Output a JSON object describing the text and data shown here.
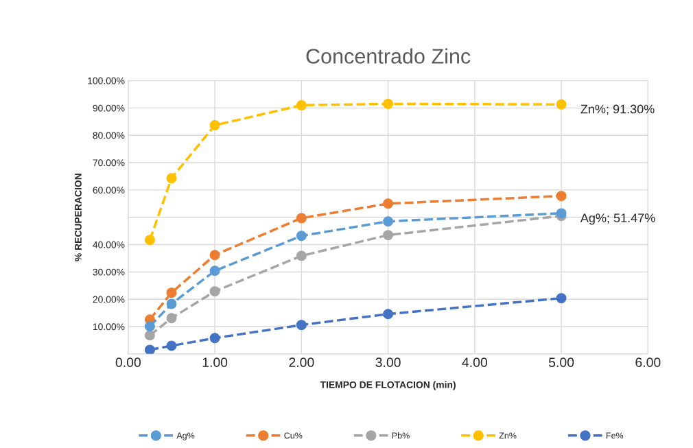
{
  "chart_data": {
    "type": "line",
    "title": "Concentrado Zinc",
    "xlabel": "TIEMPO DE FLOTACION (min)",
    "ylabel": "% RECUPERACION",
    "x": [
      0.25,
      0.5,
      1,
      2,
      3,
      5
    ],
    "series": [
      {
        "name": "Ag%",
        "color": "#5b9bd5",
        "values": [
          10.1,
          18.3,
          30.4,
          43.2,
          48.5,
          51.47
        ]
      },
      {
        "name": "Cu%",
        "color": "#ed7d31",
        "values": [
          12.6,
          22.4,
          36.2,
          49.7,
          55.0,
          57.8
        ]
      },
      {
        "name": "Pb%",
        "color": "#a5a5a5",
        "values": [
          6.8,
          13.1,
          22.9,
          35.9,
          43.5,
          50.5
        ]
      },
      {
        "name": "Zn%",
        "color": "#ffc000",
        "values": [
          41.7,
          64.3,
          83.7,
          91.0,
          91.5,
          91.3
        ]
      },
      {
        "name": "Fe%",
        "color": "#4472c4",
        "values": [
          1.5,
          3.0,
          5.8,
          10.6,
          14.6,
          20.4
        ]
      }
    ],
    "xlim": [
      0,
      6
    ],
    "xticks": [
      {
        "value": 0,
        "label": "0.00"
      },
      {
        "value": 1,
        "label": "1.00"
      },
      {
        "value": 2,
        "label": "2.00"
      },
      {
        "value": 3,
        "label": "3.00"
      },
      {
        "value": 4,
        "label": "4.00"
      },
      {
        "value": 5,
        "label": "5.00"
      },
      {
        "value": 6,
        "label": "6.00"
      }
    ],
    "ylim": [
      0,
      100
    ],
    "yticks": [
      {
        "value": 0,
        "label": null
      },
      {
        "value": 10,
        "label": "10.00%"
      },
      {
        "value": 20,
        "label": "20.00%"
      },
      {
        "value": 30,
        "label": "30.00%"
      },
      {
        "value": 40,
        "label": "40.00%"
      },
      {
        "value": 50,
        "label": null
      },
      {
        "value": 60,
        "label": "60.00%"
      },
      {
        "value": 70,
        "label": "70.00%"
      },
      {
        "value": 80,
        "label": "80.00%"
      },
      {
        "value": 90,
        "label": "90.00%"
      },
      {
        "value": 100,
        "label": "100.00%"
      }
    ],
    "annotations": [
      {
        "text": "Zn%; 91.30%",
        "x": 5,
        "y": 91.3
      },
      {
        "text": "Ag%; 51.47%",
        "x": 5,
        "y": 51.47
      }
    ],
    "grid": true,
    "legend": "bottom",
    "marker": "circle",
    "line_style": "dashed"
  }
}
